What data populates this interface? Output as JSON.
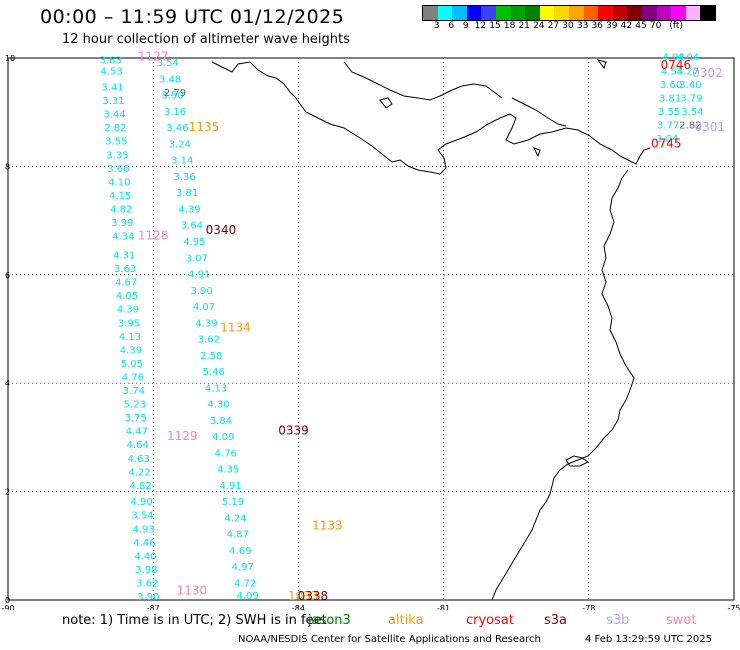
{
  "header": {
    "title": "00:00 – 11:59 UTC 01/12/2025",
    "subtitle": "12 hour collection of altimeter wave heights"
  },
  "colorbar": {
    "colors": [
      "#808080",
      "#00ffff",
      "#00bfff",
      "#0000ff",
      "#4040ff",
      "#00c000",
      "#00a000",
      "#008000",
      "#ffff00",
      "#ffd700",
      "#ffa500",
      "#ff6000",
      "#ff0000",
      "#c00000",
      "#800000",
      "#800080",
      "#c000c0",
      "#ff00ff",
      "#ffb0ff",
      "#000000"
    ],
    "ticks": [
      "3",
      "6",
      "9",
      "12",
      "15",
      "18",
      "21",
      "24",
      "27",
      "30",
      "33",
      "36",
      "39",
      "42",
      "45",
      "70",
      "(ft)"
    ]
  },
  "axes": {
    "x_ticks": [
      "-90",
      "-87",
      "-84",
      "-81",
      "-78",
      "-75"
    ],
    "y_ticks": [
      "0",
      "2",
      "4",
      "6",
      "8",
      "10"
    ],
    "xlim": [
      -90,
      -75
    ],
    "ylim": [
      0,
      10
    ]
  },
  "tracks": [
    {
      "sat": "swot",
      "color": "#00e5e5",
      "points": [
        {
          "lon": -87.88,
          "lat": 9.9,
          "v": "3.63"
        },
        {
          "lon": -87.86,
          "lat": 9.7,
          "v": "4.53"
        },
        {
          "lon": -87.84,
          "lat": 9.4,
          "v": "3.41"
        },
        {
          "lon": -87.82,
          "lat": 9.15,
          "v": "3.31"
        },
        {
          "lon": -87.8,
          "lat": 8.9,
          "v": "3.44"
        },
        {
          "lon": -87.78,
          "lat": 8.65,
          "v": "2.82"
        },
        {
          "lon": -87.76,
          "lat": 8.4,
          "v": "3.55"
        },
        {
          "lon": -87.74,
          "lat": 8.15,
          "v": "3.35"
        },
        {
          "lon": -87.72,
          "lat": 7.9,
          "v": "3.66"
        },
        {
          "lon": -87.7,
          "lat": 7.65,
          "v": "4.10"
        },
        {
          "lon": -87.68,
          "lat": 7.4,
          "v": "4.15"
        },
        {
          "lon": -87.66,
          "lat": 7.15,
          "v": "4.82"
        },
        {
          "lon": -87.64,
          "lat": 6.9,
          "v": "3.99"
        },
        {
          "lon": -87.62,
          "lat": 6.65,
          "v": "4.34"
        },
        {
          "lon": -87.6,
          "lat": 6.3,
          "v": "4.31"
        },
        {
          "lon": -87.58,
          "lat": 6.05,
          "v": "3.63"
        },
        {
          "lon": -87.56,
          "lat": 5.8,
          "v": "4.67"
        },
        {
          "lon": -87.54,
          "lat": 5.55,
          "v": "4.05"
        },
        {
          "lon": -87.52,
          "lat": 5.3,
          "v": "4.39"
        },
        {
          "lon": -87.5,
          "lat": 5.05,
          "v": "3.95"
        },
        {
          "lon": -87.48,
          "lat": 4.8,
          "v": "4.13"
        },
        {
          "lon": -87.46,
          "lat": 4.55,
          "v": "4.39"
        },
        {
          "lon": -87.44,
          "lat": 4.3,
          "v": "5.05"
        },
        {
          "lon": -87.42,
          "lat": 4.05,
          "v": "4.76"
        },
        {
          "lon": -87.4,
          "lat": 3.8,
          "v": "3.74"
        },
        {
          "lon": -87.38,
          "lat": 3.55,
          "v": "5.23"
        },
        {
          "lon": -87.36,
          "lat": 3.3,
          "v": "3.75"
        },
        {
          "lon": -87.34,
          "lat": 3.05,
          "v": "4.47"
        },
        {
          "lon": -87.32,
          "lat": 2.8,
          "v": "4.64"
        },
        {
          "lon": -87.3,
          "lat": 2.55,
          "v": "4.63"
        },
        {
          "lon": -87.28,
          "lat": 2.3,
          "v": "4.22"
        },
        {
          "lon": -87.26,
          "lat": 2.05,
          "v": "4.82"
        },
        {
          "lon": -87.24,
          "lat": 1.75,
          "v": "4.90"
        },
        {
          "lon": -87.22,
          "lat": 1.5,
          "v": "3.54"
        },
        {
          "lon": -87.2,
          "lat": 1.25,
          "v": "4.93"
        },
        {
          "lon": -87.18,
          "lat": 1.0,
          "v": "4.46"
        },
        {
          "lon": -87.16,
          "lat": 0.75,
          "v": "4.40"
        },
        {
          "lon": -87.14,
          "lat": 0.5,
          "v": "3.98"
        },
        {
          "lon": -87.12,
          "lat": 0.25,
          "v": "3.62"
        },
        {
          "lon": -87.1,
          "lat": 0.0,
          "v": "3.90"
        }
      ]
    },
    {
      "sat": "swot",
      "color": "#00e5e5",
      "points": [
        {
          "lon": -86.7,
          "lat": 9.85,
          "v": "3.54"
        },
        {
          "lon": -86.65,
          "lat": 9.55,
          "v": "3.48"
        },
        {
          "lon": -86.6,
          "lat": 9.25,
          "v": "3.50"
        },
        {
          "lon": -86.55,
          "lat": 8.95,
          "v": "3.16"
        },
        {
          "lon": -86.5,
          "lat": 8.65,
          "v": "3.46"
        },
        {
          "lon": -86.45,
          "lat": 8.35,
          "v": "3.24"
        },
        {
          "lon": -86.4,
          "lat": 8.05,
          "v": "3.14"
        },
        {
          "lon": -86.35,
          "lat": 7.75,
          "v": "3.36"
        },
        {
          "lon": -86.3,
          "lat": 7.45,
          "v": "3.81"
        },
        {
          "lon": -86.25,
          "lat": 7.15,
          "v": "4.39"
        },
        {
          "lon": -86.2,
          "lat": 6.85,
          "v": "3.64"
        },
        {
          "lon": -86.15,
          "lat": 6.55,
          "v": "4.95"
        },
        {
          "lon": -86.1,
          "lat": 6.25,
          "v": "3.07"
        },
        {
          "lon": -86.05,
          "lat": 5.95,
          "v": "4.91"
        },
        {
          "lon": -86.0,
          "lat": 5.65,
          "v": "3.90"
        },
        {
          "lon": -85.95,
          "lat": 5.35,
          "v": "4.07"
        },
        {
          "lon": -85.9,
          "lat": 5.05,
          "v": "4.39"
        },
        {
          "lon": -85.85,
          "lat": 4.75,
          "v": "3.62"
        },
        {
          "lon": -85.8,
          "lat": 4.45,
          "v": "2.58"
        },
        {
          "lon": -85.75,
          "lat": 4.15,
          "v": "5.46"
        },
        {
          "lon": -85.7,
          "lat": 3.85,
          "v": "4.13"
        },
        {
          "lon": -85.65,
          "lat": 3.55,
          "v": "4.30"
        },
        {
          "lon": -85.6,
          "lat": 3.25,
          "v": "3.84"
        },
        {
          "lon": -85.55,
          "lat": 2.95,
          "v": "4.09"
        },
        {
          "lon": -85.5,
          "lat": 2.65,
          "v": "4.76"
        },
        {
          "lon": -85.45,
          "lat": 2.35,
          "v": "4.35"
        },
        {
          "lon": -85.4,
          "lat": 2.05,
          "v": "4.91"
        },
        {
          "lon": -85.35,
          "lat": 1.75,
          "v": "5.19"
        },
        {
          "lon": -85.3,
          "lat": 1.45,
          "v": "4.24"
        },
        {
          "lon": -85.25,
          "lat": 1.15,
          "v": "4.87"
        },
        {
          "lon": -85.2,
          "lat": 0.85,
          "v": "4.69"
        },
        {
          "lon": -85.15,
          "lat": 0.55,
          "v": "4.97"
        },
        {
          "lon": -85.1,
          "lat": 0.25,
          "v": "4.72"
        },
        {
          "lon": -85.05,
          "lat": 0.02,
          "v": "4.09"
        }
      ]
    },
    {
      "sat": "swot",
      "color": "#00e5e5",
      "points": [
        {
          "lon": -76.25,
          "lat": 9.95,
          "v": "4.94"
        },
        {
          "lon": -76.28,
          "lat": 9.7,
          "v": "4.53"
        },
        {
          "lon": -76.3,
          "lat": 9.45,
          "v": "3.60"
        },
        {
          "lon": -76.32,
          "lat": 9.2,
          "v": "3.81"
        },
        {
          "lon": -76.34,
          "lat": 8.95,
          "v": "3.55"
        },
        {
          "lon": -76.36,
          "lat": 8.7,
          "v": "3.77"
        },
        {
          "lon": -76.38,
          "lat": 8.45,
          "v": "3.04"
        },
        {
          "lon": -75.95,
          "lat": 9.95,
          "v": "4.04"
        },
        {
          "lon": -75.95,
          "lat": 9.7,
          "v": "4.27"
        },
        {
          "lon": -75.9,
          "lat": 9.45,
          "v": "3.40"
        },
        {
          "lon": -75.88,
          "lat": 9.2,
          "v": "3.79"
        },
        {
          "lon": -75.86,
          "lat": 8.95,
          "v": "3.54"
        }
      ]
    },
    {
      "sat": "jason3",
      "color": "#606060",
      "points": [
        {
          "lon": -86.55,
          "lat": 9.3,
          "v": "2.79"
        },
        {
          "lon": -75.9,
          "lat": 8.7,
          "v": "2.82"
        }
      ]
    }
  ],
  "time_labels": [
    {
      "lon": -87.0,
      "lat": 9.95,
      "v": "1127",
      "color": "#ff80c0"
    },
    {
      "lon": -85.95,
      "lat": 8.65,
      "v": "1135",
      "color": "#ff9900"
    },
    {
      "lon": -87.0,
      "lat": 6.65,
      "v": "1128",
      "color": "#ff80c0"
    },
    {
      "lon": -85.6,
      "lat": 6.75,
      "v": "0340",
      "color": "#800000"
    },
    {
      "lon": -85.3,
      "lat": 4.95,
      "v": "1134",
      "color": "#ff9900"
    },
    {
      "lon": -84.1,
      "lat": 3.05,
      "v": "0339",
      "color": "#800000"
    },
    {
      "lon": -86.4,
      "lat": 2.95,
      "v": "1129",
      "color": "#ff80c0"
    },
    {
      "lon": -83.4,
      "lat": 1.3,
      "v": "1133",
      "color": "#ff9900"
    },
    {
      "lon": -86.2,
      "lat": 0.1,
      "v": "1130",
      "color": "#ff80c0"
    },
    {
      "lon": -83.9,
      "lat": 0.0,
      "v": "1033",
      "color": "#ff9900"
    },
    {
      "lon": -83.7,
      "lat": 0.0,
      "v": "0338",
      "color": "#800000"
    },
    {
      "lon": -76.2,
      "lat": 9.8,
      "v": "0746",
      "color": "#ff0000"
    },
    {
      "lon": -75.55,
      "lat": 9.65,
      "v": "0302",
      "color": "#c0a0ff"
    },
    {
      "lon": -75.5,
      "lat": 8.65,
      "v": "0301",
      "color": "#c0a0ff"
    },
    {
      "lon": -76.4,
      "lat": 8.35,
      "v": "0745",
      "color": "#ff0000"
    }
  ],
  "note": {
    "text": "note:  1) Time is in UTC; 2) SWH is in feet",
    "satellites": [
      {
        "name": "jason3",
        "color": "#008000"
      },
      {
        "name": "altika",
        "color": "#ff9900"
      },
      {
        "name": "cryosat",
        "color": "#ff0000"
      },
      {
        "name": "s3a",
        "color": "#800000"
      },
      {
        "name": "s3b",
        "color": "#c0a0ff"
      },
      {
        "name": "swot",
        "color": "#ff80c0"
      }
    ]
  },
  "footer": {
    "credit": "NOAA/NESDIS Center for Satellite Applications and Research",
    "timestamp": "4 Feb 13:29:59 UTC 2025"
  }
}
